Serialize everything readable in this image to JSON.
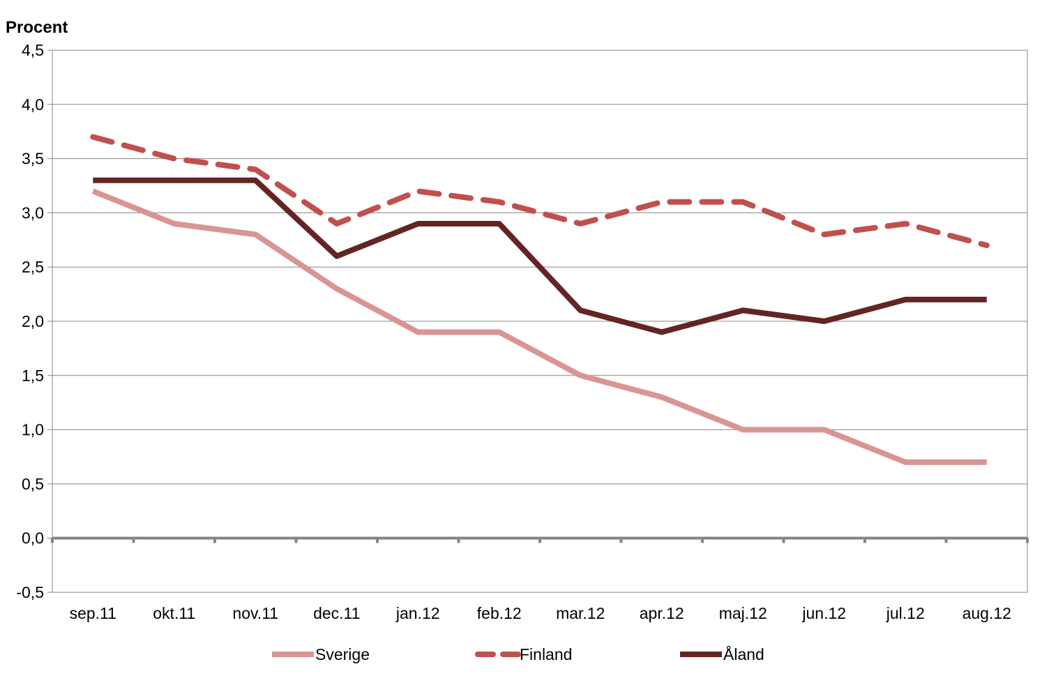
{
  "chart_data": {
    "type": "line",
    "title": "",
    "ylabel": "Procent",
    "xlabel": "",
    "categories": [
      "sep.11",
      "okt.11",
      "nov.11",
      "dec.11",
      "jan.12",
      "feb.12",
      "mar.12",
      "apr.12",
      "maj.12",
      "jun.12",
      "jul.12",
      "aug.12"
    ],
    "ylim": [
      -0.5,
      4.5
    ],
    "yticks": [
      -0.5,
      0.0,
      0.5,
      1.0,
      1.5,
      2.0,
      2.5,
      3.0,
      3.5,
      4.0,
      4.5
    ],
    "ytick_labels": [
      "-0,5",
      "0,0",
      "0,5",
      "1,0",
      "1,5",
      "2,0",
      "2,5",
      "3,0",
      "3,5",
      "4,0",
      "4,5"
    ],
    "grid": true,
    "legend_position": "bottom",
    "series": [
      {
        "name": "Sverige",
        "color": "#d99594",
        "style": "solid",
        "values": [
          3.2,
          2.9,
          2.8,
          2.3,
          1.9,
          1.9,
          1.5,
          1.3,
          1.0,
          1.0,
          0.7,
          0.7
        ]
      },
      {
        "name": "Finland",
        "color": "#c0504d",
        "style": "dashed",
        "values": [
          3.7,
          3.5,
          3.4,
          2.9,
          3.2,
          3.1,
          2.9,
          3.1,
          3.1,
          2.8,
          2.9,
          2.7
        ]
      },
      {
        "name": "Åland",
        "color": "#632523",
        "style": "solid",
        "values": [
          3.3,
          3.3,
          3.3,
          2.6,
          2.9,
          2.9,
          2.1,
          1.9,
          2.1,
          2.0,
          2.2,
          2.2
        ]
      }
    ]
  }
}
